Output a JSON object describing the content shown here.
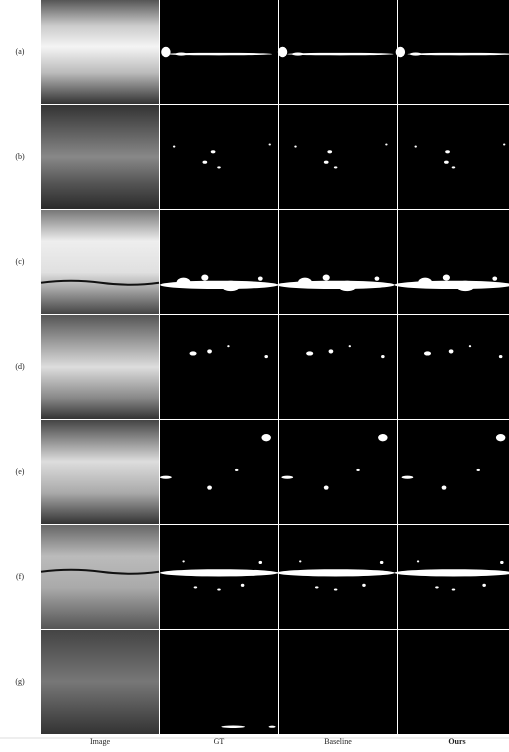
{
  "rows": [
    {
      "label": "(a)"
    },
    {
      "label": "(b)"
    },
    {
      "label": "(c)"
    },
    {
      "label": "(d)"
    },
    {
      "label": "(e)"
    },
    {
      "label": "(f)"
    },
    {
      "label": "(g)"
    }
  ],
  "columns": [
    "Image",
    "GT",
    "Baseline",
    "Ours"
  ]
}
